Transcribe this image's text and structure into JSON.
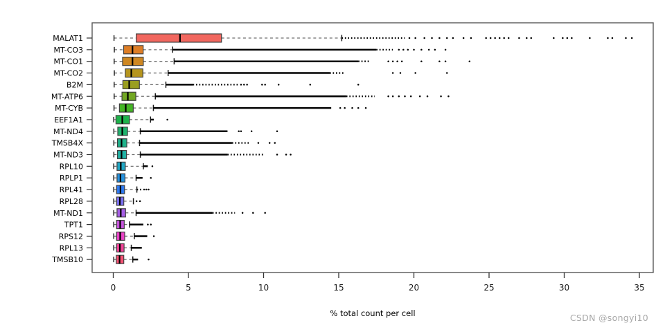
{
  "watermark": "CSDN @songyi10",
  "chart_data": {
    "type": "boxplot",
    "orientation": "horizontal",
    "title": "",
    "xlabel": "% total count per cell",
    "ylabel": "",
    "xlim": [
      -1.4,
      35.9
    ],
    "xticks": [
      0,
      5,
      10,
      15,
      20,
      25,
      30,
      35
    ],
    "grid": false,
    "legend": "none",
    "frame": "full-box",
    "categories": [
      "MALAT1",
      "MT-CO3",
      "MT-CO1",
      "MT-CO2",
      "B2M",
      "MT-ATP6",
      "MT-CYB",
      "EEF1A1",
      "MT-ND4",
      "TMSB4X",
      "MT-ND3",
      "RPL10",
      "RPLP1",
      "RPL41",
      "RPL28",
      "MT-ND1",
      "TPT1",
      "RPS12",
      "RPL13",
      "TMSB10"
    ],
    "series": [
      {
        "name": "MALAT1",
        "color": "#f2675f",
        "whislo": 0.05,
        "q1": 1.53,
        "med": 4.44,
        "q3": 7.2,
        "whishi": 15.2,
        "dense_to": null,
        "taper_to": 19.4,
        "fliers": [
          19.7,
          20.1,
          20.7,
          21.2,
          21.7,
          22.2,
          22.6,
          23.3,
          23.8,
          24.8,
          25.1,
          25.4,
          25.7,
          26.0,
          26.3,
          27.0,
          27.5,
          27.8,
          29.3,
          29.9,
          30.2,
          30.5,
          31.7,
          32.9,
          33.2,
          34.1,
          34.5
        ]
      },
      {
        "name": "MT-CO3",
        "color": "#de7e26",
        "whislo": 0.07,
        "q1": 0.69,
        "med": 1.28,
        "q3": 1.99,
        "whishi": 3.95,
        "dense_to": 17.5,
        "taper_to": 18.6,
        "fliers": [
          19.0,
          19.3,
          19.6,
          20.0,
          20.5,
          21.0,
          21.4,
          22.1
        ]
      },
      {
        "name": "MT-CO1",
        "color": "#ce8722",
        "whislo": 0.06,
        "q1": 0.62,
        "med": 1.28,
        "q3": 2.0,
        "whishi": 4.05,
        "dense_to": 16.3,
        "taper_to": 17.1,
        "fliers": [
          18.3,
          18.6,
          18.9,
          19.2,
          20.5,
          21.7,
          22.1,
          23.7
        ]
      },
      {
        "name": "MT-CO2",
        "color": "#b6951e",
        "whislo": 0.07,
        "q1": 0.8,
        "med": 1.2,
        "q3": 1.97,
        "whishi": 3.65,
        "dense_to": 14.4,
        "taper_to": 15.4,
        "fliers": [
          18.6,
          19.1,
          20.1,
          22.2
        ]
      },
      {
        "name": "B2M",
        "color": "#9a9e1f",
        "whislo": 0.06,
        "q1": 0.64,
        "med": 1.06,
        "q3": 1.74,
        "whishi": 3.5,
        "dense_to": 5.3,
        "taper_to": 8.4,
        "fliers": [
          8.5,
          8.7,
          8.9,
          9.9,
          10.1,
          11.0,
          13.1,
          16.3
        ]
      },
      {
        "name": "MT-ATP6",
        "color": "#72a722",
        "whislo": 0.06,
        "q1": 0.58,
        "med": 0.97,
        "q3": 1.5,
        "whishi": 2.8,
        "dense_to": 15.5,
        "taper_to": 17.4,
        "fliers": [
          18.3,
          18.6,
          19.0,
          19.4,
          19.8,
          20.4,
          20.9,
          21.8,
          22.3
        ]
      },
      {
        "name": "MT-CYB",
        "color": "#44b525",
        "whislo": 0.05,
        "q1": 0.41,
        "med": 0.83,
        "q3": 1.33,
        "whishi": 2.67,
        "dense_to": 14.5,
        "taper_to": null,
        "fliers": [
          15.1,
          15.4,
          15.9,
          16.3,
          16.8
        ]
      },
      {
        "name": "EEF1A1",
        "color": "#1eb34b",
        "whislo": 0.03,
        "q1": 0.18,
        "med": 0.6,
        "q3": 1.08,
        "whishi": 2.48,
        "dense_to": 2.7,
        "taper_to": null,
        "fliers": [
          3.6
        ]
      },
      {
        "name": "MT-ND4",
        "color": "#21b36e",
        "whislo": 0.04,
        "q1": 0.3,
        "med": 0.6,
        "q3": 0.95,
        "whishi": 1.8,
        "dense_to": 7.6,
        "taper_to": null,
        "fliers": [
          8.35,
          8.5,
          9.2,
          10.9
        ]
      },
      {
        "name": "TMSB4X",
        "color": "#1fb28b",
        "whislo": 0.04,
        "q1": 0.28,
        "med": 0.55,
        "q3": 0.9,
        "whishi": 1.75,
        "dense_to": 7.9,
        "taper_to": 9.05,
        "fliers": [
          9.65,
          10.4,
          10.75
        ]
      },
      {
        "name": "MT-ND3",
        "color": "#20b2a5",
        "whislo": 0.04,
        "q1": 0.28,
        "med": 0.55,
        "q3": 0.88,
        "whishi": 1.8,
        "dense_to": 7.6,
        "taper_to": 10.0,
        "fliers": [
          10.9,
          11.5,
          11.8
        ]
      },
      {
        "name": "RPL10",
        "color": "#22a7c4",
        "whislo": 0.03,
        "q1": 0.25,
        "med": 0.5,
        "q3": 0.8,
        "whishi": 2.0,
        "dense_to": 2.3,
        "taper_to": null,
        "fliers": [
          2.6
        ]
      },
      {
        "name": "RPLP1",
        "color": "#2792de",
        "whislo": 0.03,
        "q1": 0.25,
        "med": 0.48,
        "q3": 0.78,
        "whishi": 1.52,
        "dense_to": 1.95,
        "taper_to": null,
        "fliers": [
          2.5
        ]
      },
      {
        "name": "RPL41",
        "color": "#2e79ee",
        "whislo": 0.03,
        "q1": 0.22,
        "med": 0.48,
        "q3": 0.75,
        "whishi": 1.57,
        "dense_to": null,
        "taper_to": 1.9,
        "fliers": [
          2.05,
          2.2,
          2.35
        ]
      },
      {
        "name": "RPL28",
        "color": "#7b6ff0",
        "whislo": 0.03,
        "q1": 0.22,
        "med": 0.44,
        "q3": 0.7,
        "whishi": 1.34,
        "dense_to": null,
        "taper_to": null,
        "fliers": [
          1.55,
          1.78
        ]
      },
      {
        "name": "MT-ND1",
        "color": "#a75fe6",
        "whislo": 0.03,
        "q1": 0.25,
        "med": 0.5,
        "q3": 0.82,
        "whishi": 1.52,
        "dense_to": 6.6,
        "taper_to": 8.1,
        "fliers": [
          8.6,
          9.3,
          10.1
        ]
      },
      {
        "name": "TPT1",
        "color": "#c653dc",
        "whislo": 0.03,
        "q1": 0.22,
        "med": 0.46,
        "q3": 0.73,
        "whishi": 1.08,
        "dense_to": 2.0,
        "taper_to": null,
        "fliers": [
          2.3,
          2.5
        ]
      },
      {
        "name": "RPS12",
        "color": "#e843c6",
        "whislo": 0.03,
        "q1": 0.22,
        "med": 0.46,
        "q3": 0.76,
        "whishi": 1.4,
        "dense_to": 2.26,
        "taper_to": null,
        "fliers": [
          2.7
        ]
      },
      {
        "name": "RPL13",
        "color": "#f04397",
        "whislo": 0.03,
        "q1": 0.22,
        "med": 0.44,
        "q3": 0.72,
        "whishi": 1.2,
        "dense_to": 1.9,
        "taper_to": null,
        "fliers": []
      },
      {
        "name": "TMSB10",
        "color": "#f45274",
        "whislo": 0.03,
        "q1": 0.2,
        "med": 0.42,
        "q3": 0.7,
        "whishi": 1.3,
        "dense_to": 1.65,
        "taper_to": null,
        "fliers": [
          2.35
        ]
      }
    ],
    "style_colors": {
      "frame": "#595959",
      "tick": "#333333",
      "whisker_dash": "#6e6e6e",
      "cap": "#1a1a1a",
      "median": "#000000",
      "outlier": "#000000",
      "box_edge": "#404040",
      "watermark": "#a8a8a8",
      "background": "#ffffff"
    }
  }
}
